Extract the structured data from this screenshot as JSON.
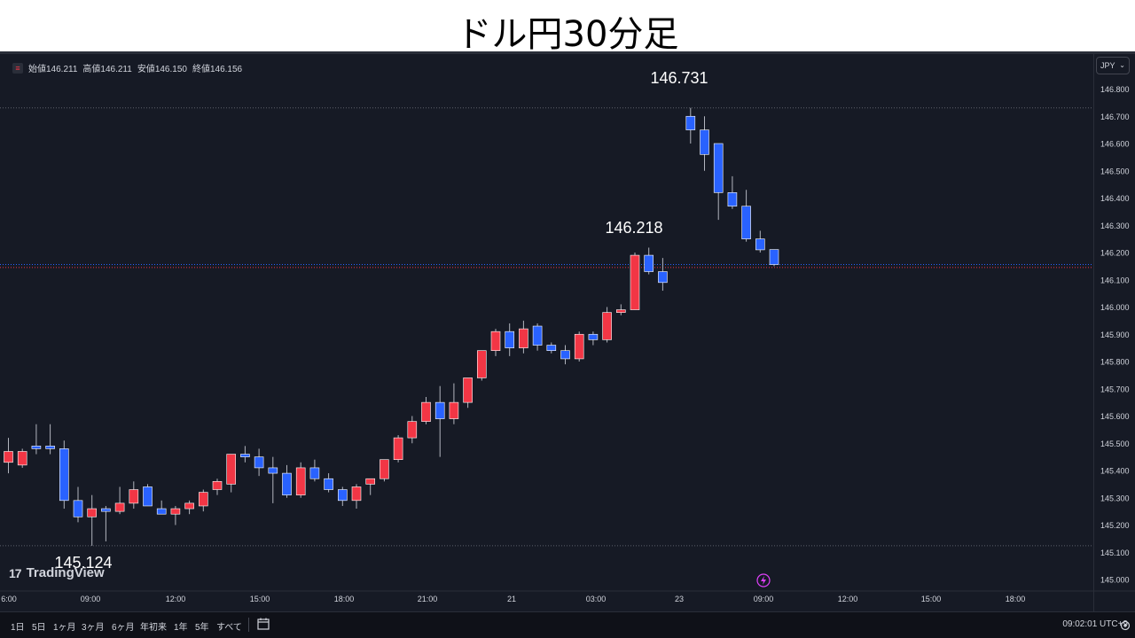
{
  "banner": {
    "title": "ドル円30分足"
  },
  "legend": {
    "symbol_icon": "equals-icon",
    "open_label": "始値",
    "open": "146.211",
    "high_label": "高値",
    "high": "146.211",
    "low_label": "安値",
    "low": "146.150",
    "close_label": "終値",
    "close": "146.156"
  },
  "currency_selector": {
    "value": "JPY",
    "icon": "chevron-down-icon"
  },
  "annotations": {
    "high_label": "146.731",
    "mid_label": "146.218",
    "low_label": "145.124"
  },
  "brand": {
    "name": "TradingView",
    "logo": "tv-logo-icon"
  },
  "bottom_bar": {
    "ranges": [
      "1日",
      "5日",
      "1ヶ月",
      "3ヶ月",
      "6ヶ月",
      "年初来",
      "1年",
      "5年",
      "すべて"
    ],
    "calendar_icon": "calendar-icon",
    "clock": "09:02:01 UTC+9",
    "settings_icon": "gear-icon"
  },
  "colors": {
    "background": "#161a25",
    "up": "#f23645",
    "down": "#2962ff",
    "text": "#d1d4dc",
    "grid": "#363a45"
  },
  "chart_data": {
    "type": "candlestick",
    "title": "ドル円30分足",
    "ylim": [
      144.96,
      146.86
    ],
    "y_ticks": [
      "146.800",
      "146.700",
      "146.600",
      "146.500",
      "146.400",
      "146.300",
      "146.200",
      "146.100",
      "146.000",
      "145.900",
      "145.800",
      "145.700",
      "145.600",
      "145.500",
      "145.400",
      "145.300",
      "145.200",
      "145.100",
      "145.000"
    ],
    "x_ticks": [
      "6:00",
      "09:00",
      "12:00",
      "15:00",
      "18:00",
      "21:00",
      "21",
      "03:00",
      "23",
      "09:00",
      "12:00",
      "15:00",
      "18:00"
    ],
    "reference_lines": [
      146.731,
      145.124
    ],
    "current_price_lines": [
      146.156,
      146.145
    ],
    "candles": [
      {
        "o": 145.43,
        "h": 145.52,
        "l": 145.39,
        "c": 145.47
      },
      {
        "o": 145.42,
        "h": 145.48,
        "l": 145.41,
        "c": 145.47
      },
      {
        "o": 145.49,
        "h": 145.57,
        "l": 145.46,
        "c": 145.48
      },
      {
        "o": 145.49,
        "h": 145.57,
        "l": 145.46,
        "c": 145.48
      },
      {
        "o": 145.48,
        "h": 145.51,
        "l": 145.26,
        "c": 145.29
      },
      {
        "o": 145.29,
        "h": 145.34,
        "l": 145.21,
        "c": 145.23
      },
      {
        "o": 145.23,
        "h": 145.31,
        "l": 145.124,
        "c": 145.26
      },
      {
        "o": 145.26,
        "h": 145.27,
        "l": 145.14,
        "c": 145.25
      },
      {
        "o": 145.25,
        "h": 145.34,
        "l": 145.24,
        "c": 145.28
      },
      {
        "o": 145.28,
        "h": 145.36,
        "l": 145.26,
        "c": 145.33
      },
      {
        "o": 145.34,
        "h": 145.35,
        "l": 145.27,
        "c": 145.27
      },
      {
        "o": 145.26,
        "h": 145.29,
        "l": 145.24,
        "c": 145.24
      },
      {
        "o": 145.24,
        "h": 145.27,
        "l": 145.2,
        "c": 145.26
      },
      {
        "o": 145.26,
        "h": 145.29,
        "l": 145.24,
        "c": 145.28
      },
      {
        "o": 145.27,
        "h": 145.33,
        "l": 145.25,
        "c": 145.32
      },
      {
        "o": 145.33,
        "h": 145.37,
        "l": 145.31,
        "c": 145.36
      },
      {
        "o": 145.35,
        "h": 145.46,
        "l": 145.32,
        "c": 145.46
      },
      {
        "o": 145.46,
        "h": 145.49,
        "l": 145.43,
        "c": 145.45
      },
      {
        "o": 145.45,
        "h": 145.48,
        "l": 145.38,
        "c": 145.41
      },
      {
        "o": 145.41,
        "h": 145.45,
        "l": 145.28,
        "c": 145.39
      },
      {
        "o": 145.39,
        "h": 145.42,
        "l": 145.3,
        "c": 145.31
      },
      {
        "o": 145.31,
        "h": 145.43,
        "l": 145.3,
        "c": 145.41
      },
      {
        "o": 145.41,
        "h": 145.44,
        "l": 145.36,
        "c": 145.37
      },
      {
        "o": 145.37,
        "h": 145.39,
        "l": 145.32,
        "c": 145.33
      },
      {
        "o": 145.33,
        "h": 145.34,
        "l": 145.27,
        "c": 145.29
      },
      {
        "o": 145.29,
        "h": 145.35,
        "l": 145.26,
        "c": 145.34
      },
      {
        "o": 145.35,
        "h": 145.37,
        "l": 145.31,
        "c": 145.37
      },
      {
        "o": 145.37,
        "h": 145.44,
        "l": 145.36,
        "c": 145.44
      },
      {
        "o": 145.44,
        "h": 145.53,
        "l": 145.43,
        "c": 145.52
      },
      {
        "o": 145.52,
        "h": 145.6,
        "l": 145.5,
        "c": 145.58
      },
      {
        "o": 145.58,
        "h": 145.67,
        "l": 145.57,
        "c": 145.65
      },
      {
        "o": 145.65,
        "h": 145.71,
        "l": 145.45,
        "c": 145.59
      },
      {
        "o": 145.59,
        "h": 145.72,
        "l": 145.57,
        "c": 145.65
      },
      {
        "o": 145.65,
        "h": 145.74,
        "l": 145.63,
        "c": 145.74
      },
      {
        "o": 145.74,
        "h": 145.83,
        "l": 145.73,
        "c": 145.84
      },
      {
        "o": 145.84,
        "h": 145.92,
        "l": 145.82,
        "c": 145.91
      },
      {
        "o": 145.91,
        "h": 145.94,
        "l": 145.82,
        "c": 145.85
      },
      {
        "o": 145.85,
        "h": 145.95,
        "l": 145.83,
        "c": 145.92
      },
      {
        "o": 145.93,
        "h": 145.94,
        "l": 145.84,
        "c": 145.86
      },
      {
        "o": 145.86,
        "h": 145.87,
        "l": 145.83,
        "c": 145.84
      },
      {
        "o": 145.84,
        "h": 145.86,
        "l": 145.79,
        "c": 145.81
      },
      {
        "o": 145.81,
        "h": 145.91,
        "l": 145.8,
        "c": 145.9
      },
      {
        "o": 145.9,
        "h": 145.91,
        "l": 145.86,
        "c": 145.88
      },
      {
        "o": 145.88,
        "h": 146.0,
        "l": 145.87,
        "c": 145.98
      },
      {
        "o": 145.98,
        "h": 146.01,
        "l": 145.97,
        "c": 145.99
      },
      {
        "o": 145.99,
        "h": 146.2,
        "l": 145.99,
        "c": 146.19
      },
      {
        "o": 146.19,
        "h": 146.218,
        "l": 146.12,
        "c": 146.13
      },
      {
        "o": 146.13,
        "h": 146.18,
        "l": 146.06,
        "c": 146.09
      },
      {
        "o": 146.7,
        "h": 146.731,
        "l": 146.6,
        "c": 146.65
      },
      {
        "o": 146.65,
        "h": 146.7,
        "l": 146.5,
        "c": 146.56
      },
      {
        "o": 146.6,
        "h": 146.6,
        "l": 146.32,
        "c": 146.42
      },
      {
        "o": 146.42,
        "h": 146.48,
        "l": 146.36,
        "c": 146.37
      },
      {
        "o": 146.37,
        "h": 146.43,
        "l": 146.24,
        "c": 146.25
      },
      {
        "o": 146.25,
        "h": 146.28,
        "l": 146.2,
        "c": 146.21
      },
      {
        "o": 146.211,
        "h": 146.211,
        "l": 146.15,
        "c": 146.156
      }
    ],
    "x_index": [
      0,
      1,
      2,
      3,
      4,
      5,
      6,
      7,
      8,
      9,
      10,
      11,
      12,
      13,
      14,
      15,
      16,
      17,
      18,
      19,
      20,
      21,
      22,
      23,
      24,
      25,
      26,
      27,
      28,
      29,
      30,
      31,
      32,
      33,
      34,
      35,
      36,
      37,
      38,
      39,
      40,
      41,
      42,
      43,
      44,
      45,
      46,
      47,
      49,
      50,
      51,
      52,
      53,
      54,
      55
    ]
  }
}
